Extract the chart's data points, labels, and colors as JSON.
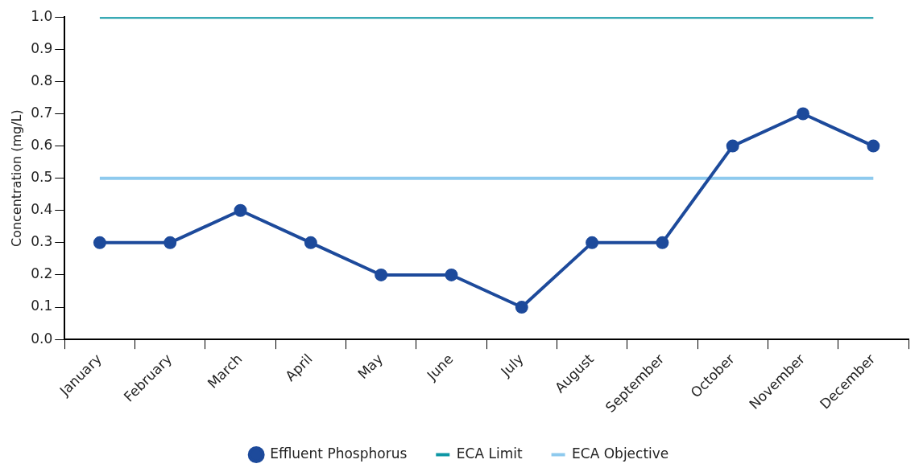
{
  "chart_data": {
    "type": "line",
    "ylabel": "Concentration (mg/L)",
    "categories": [
      "January",
      "February",
      "March",
      "April",
      "May",
      "June",
      "July",
      "August",
      "September",
      "October",
      "November",
      "December"
    ],
    "series": [
      {
        "name": "Effluent Phosphorus",
        "color": "#1d4a9b",
        "marker": "circle",
        "values": [
          0.3,
          0.3,
          0.4,
          0.3,
          0.2,
          0.2,
          0.1,
          0.3,
          0.3,
          0.6,
          0.7,
          0.6
        ]
      },
      {
        "name": "ECA Limit",
        "color": "#0e97a5",
        "marker": "none",
        "values": [
          1.0,
          1.0,
          1.0,
          1.0,
          1.0,
          1.0,
          1.0,
          1.0,
          1.0,
          1.0,
          1.0,
          1.0
        ]
      },
      {
        "name": "ECA Objective",
        "color": "#8ecaee",
        "marker": "none",
        "values": [
          0.5,
          0.5,
          0.5,
          0.5,
          0.5,
          0.5,
          0.5,
          0.5,
          0.5,
          0.5,
          0.5,
          0.5
        ]
      }
    ],
    "ylim": [
      0,
      1
    ],
    "yticks": [
      {
        "value": 0,
        "label": "0.0"
      },
      0.1,
      0.2,
      0.3,
      0.4,
      0.5,
      0.6,
      0.7,
      0.8,
      0.9,
      {
        "value": 1,
        "label": "1.0"
      }
    ],
    "grid": false,
    "legend": "bottom",
    "line_style": "solid"
  }
}
